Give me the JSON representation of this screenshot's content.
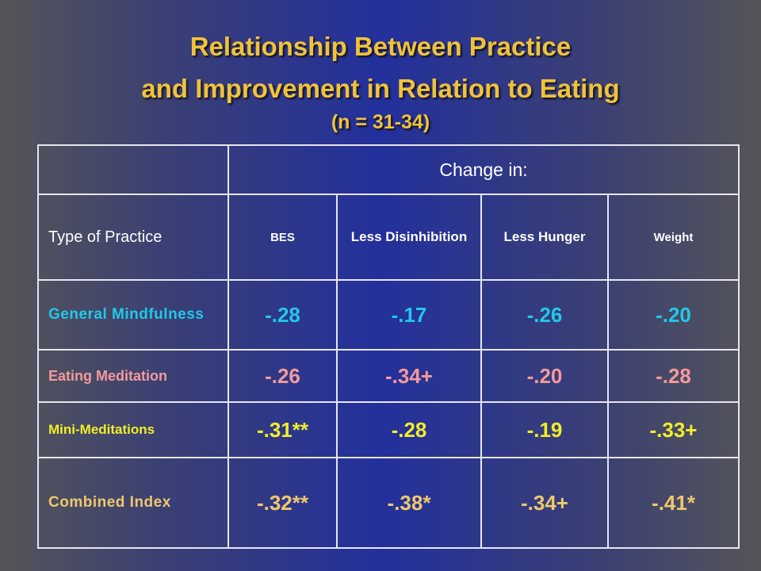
{
  "title": {
    "line1": "Relationship Between Practice",
    "line2": "and Improvement in Relation to Eating",
    "line3": "(n = 31-34)"
  },
  "table": {
    "group_header": "Change in:",
    "type_header": "Type of Practice",
    "columns": [
      "BES",
      "Less Disinhibition",
      "Less Hunger",
      "Weight"
    ],
    "rows": [
      {
        "label": "General Mindfulness",
        "values": [
          "-.28",
          "-.17",
          "-.26",
          "-.20"
        ]
      },
      {
        "label": "Eating Meditation",
        "values": [
          "-.26",
          "-.34+",
          "-.20",
          "-.28"
        ]
      },
      {
        "label": "Mini-Meditations",
        "values": [
          "-.31**",
          "-.28",
          "-.19",
          "-.33+"
        ]
      },
      {
        "label": "Combined Index",
        "values": [
          "-.32**",
          "-.38*",
          "-.34+",
          "-.41*"
        ]
      }
    ]
  },
  "colors": {
    "title": "#f0c23c",
    "general_mindfulness": "#22c8e8",
    "eating_meditation": "#f49a9a",
    "mini_meditations": "#f0ee28",
    "combined_index": "#f0c86c"
  }
}
